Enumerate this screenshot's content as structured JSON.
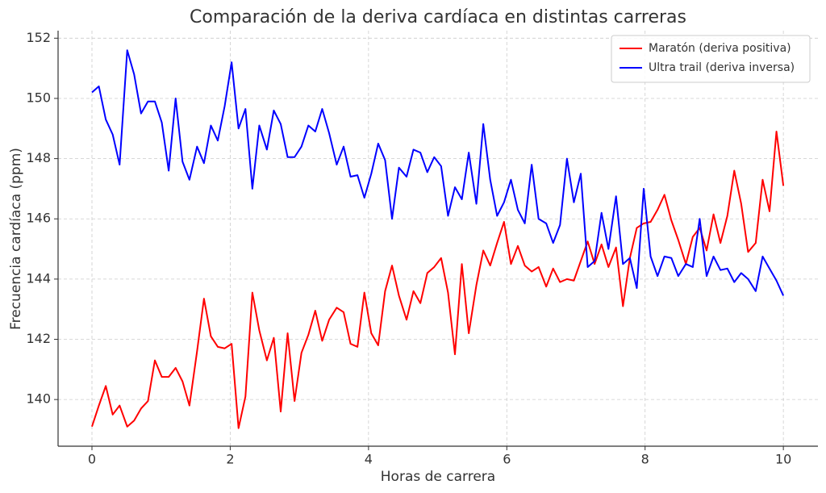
{
  "chart_data": {
    "type": "line",
    "title": "Comparación de la deriva cardíaca en distintas carreras",
    "xlabel": "Horas de carrera",
    "ylabel": "Frecuencia cardíaca (ppm)",
    "x": [
      0,
      0.1,
      0.2,
      0.3,
      0.4,
      0.51,
      0.61,
      0.71,
      0.81,
      0.91,
      1.01,
      1.11,
      1.21,
      1.31,
      1.41,
      1.52,
      1.62,
      1.72,
      1.82,
      1.92,
      2.02,
      2.12,
      2.22,
      2.32,
      2.42,
      2.53,
      2.63,
      2.73,
      2.83,
      2.93,
      3.03,
      3.13,
      3.23,
      3.33,
      3.43,
      3.54,
      3.64,
      3.74,
      3.84,
      3.94,
      4.04,
      4.14,
      4.24,
      4.34,
      4.44,
      4.55,
      4.65,
      4.75,
      4.85,
      4.95,
      5.05,
      5.15,
      5.25,
      5.35,
      5.45,
      5.56,
      5.66,
      5.76,
      5.86,
      5.96,
      6.06,
      6.16,
      6.26,
      6.36,
      6.46,
      6.57,
      6.67,
      6.77,
      6.87,
      6.97,
      7.07,
      7.17,
      7.27,
      7.37,
      7.47,
      7.58,
      7.68,
      7.78,
      7.88,
      7.98,
      8.08,
      8.18,
      8.28,
      8.38,
      8.48,
      8.59,
      8.69,
      8.79,
      8.89,
      8.99,
      9.09,
      9.19,
      9.29,
      9.39,
      9.49,
      9.6,
      9.7,
      9.8,
      9.9,
      10
    ],
    "series": [
      {
        "name": "Maratón (deriva positiva)",
        "color": "#ff0000",
        "values": [
          139.1,
          139.8,
          140.45,
          139.5,
          139.8,
          139.1,
          139.3,
          139.7,
          139.95,
          141.3,
          140.75,
          140.75,
          141.05,
          140.6,
          139.8,
          141.6,
          143.35,
          142.1,
          141.75,
          141.7,
          141.85,
          139.05,
          140.1,
          143.55,
          142.3,
          141.3,
          142.05,
          139.6,
          142.2,
          139.95,
          141.55,
          142.15,
          142.95,
          141.95,
          142.65,
          143.05,
          142.9,
          141.85,
          141.75,
          143.55,
          142.2,
          141.8,
          143.6,
          144.45,
          143.45,
          142.65,
          143.6,
          143.2,
          144.2,
          144.4,
          144.7,
          143.55,
          141.5,
          144.5,
          142.2,
          143.8,
          144.95,
          144.45,
          145.2,
          145.9,
          144.5,
          145.1,
          144.45,
          144.25,
          144.4,
          143.75,
          144.35,
          143.9,
          144.0,
          143.95,
          144.6,
          145.25,
          144.5,
          145.15,
          144.4,
          145.05,
          143.1,
          144.7,
          145.7,
          145.85,
          145.9,
          146.3,
          146.8,
          145.95,
          145.3,
          144.5,
          145.4,
          145.7,
          144.95,
          146.15,
          145.2,
          146.1,
          147.6,
          146.5,
          144.9,
          145.2,
          147.3,
          146.25,
          148.9,
          147.1
        ]
      },
      {
        "name": "Ultra trail (deriva inversa)",
        "color": "#0000ff",
        "values": [
          150.2,
          150.4,
          149.3,
          148.8,
          147.8,
          151.6,
          150.8,
          149.5,
          149.9,
          149.9,
          149.2,
          147.6,
          150.0,
          147.9,
          147.3,
          148.4,
          147.85,
          149.1,
          148.6,
          149.75,
          151.2,
          149.0,
          149.65,
          147.0,
          149.1,
          148.3,
          149.6,
          149.15,
          148.05,
          148.05,
          148.4,
          149.1,
          148.9,
          149.65,
          148.85,
          147.8,
          148.4,
          147.4,
          147.45,
          146.7,
          147.5,
          148.5,
          147.95,
          146.0,
          147.7,
          147.4,
          148.3,
          148.2,
          147.55,
          148.05,
          147.75,
          146.1,
          147.05,
          146.65,
          148.2,
          146.5,
          149.15,
          147.3,
          146.1,
          146.55,
          147.3,
          146.3,
          145.85,
          147.8,
          146.0,
          145.85,
          145.2,
          145.8,
          148.0,
          146.55,
          147.5,
          144.4,
          144.6,
          146.2,
          145.0,
          146.75,
          144.5,
          144.7,
          143.7,
          147.0,
          144.75,
          144.1,
          144.75,
          144.7,
          144.1,
          144.5,
          144.4,
          146.0,
          144.1,
          144.75,
          144.3,
          144.35,
          143.9,
          144.2,
          144.0,
          143.6,
          144.75,
          144.35,
          143.95,
          143.45
        ]
      }
    ],
    "xlim": [
      -0.49,
      10.5
    ],
    "xticks": [
      0,
      2,
      4,
      6,
      8,
      10
    ],
    "ylim": [
      138.45,
      152.25
    ],
    "yticks": [
      140,
      142,
      144,
      146,
      148,
      150,
      152
    ],
    "grid": true,
    "legend": "upper right"
  }
}
